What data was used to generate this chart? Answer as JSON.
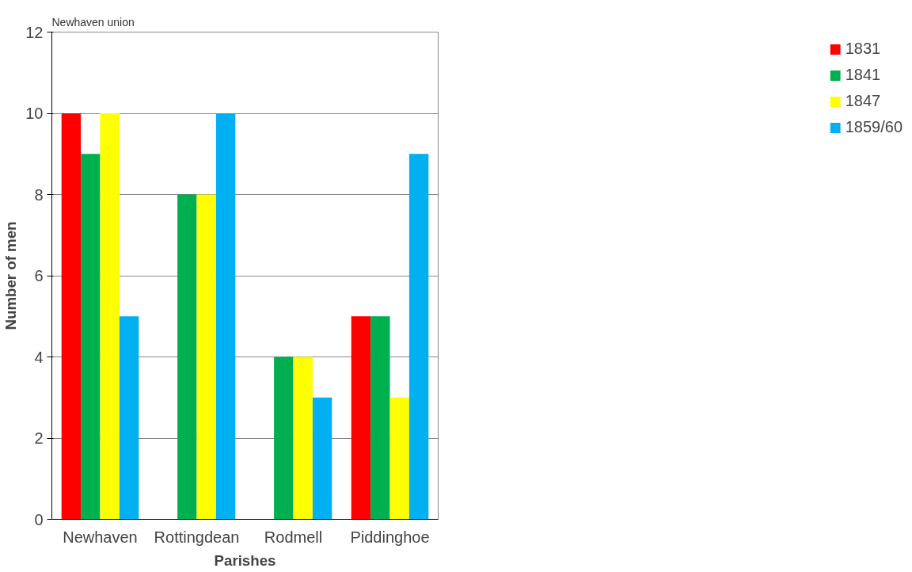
{
  "chart_data": {
    "type": "bar",
    "title": "Newhaven union",
    "xlabel": "Parishes",
    "ylabel": "Number of men",
    "categories": [
      "Newhaven",
      "Rottingdean",
      "Rodmell",
      "Piddinghoe"
    ],
    "series": [
      {
        "name": "1831",
        "color": "#ff0000",
        "values": [
          10,
          null,
          null,
          5
        ]
      },
      {
        "name": "1841",
        "color": "#00b050",
        "values": [
          9,
          8,
          4,
          5
        ]
      },
      {
        "name": "1847",
        "color": "#ffff00",
        "values": [
          10,
          8,
          4,
          3
        ]
      },
      {
        "name": "1859/60",
        "color": "#00b0f0",
        "values": [
          5,
          10,
          3,
          9
        ]
      }
    ],
    "ylim": [
      0,
      12
    ],
    "yticks": [
      0,
      2,
      4,
      6,
      8,
      10,
      12
    ],
    "grid": "y",
    "legend": "right"
  }
}
